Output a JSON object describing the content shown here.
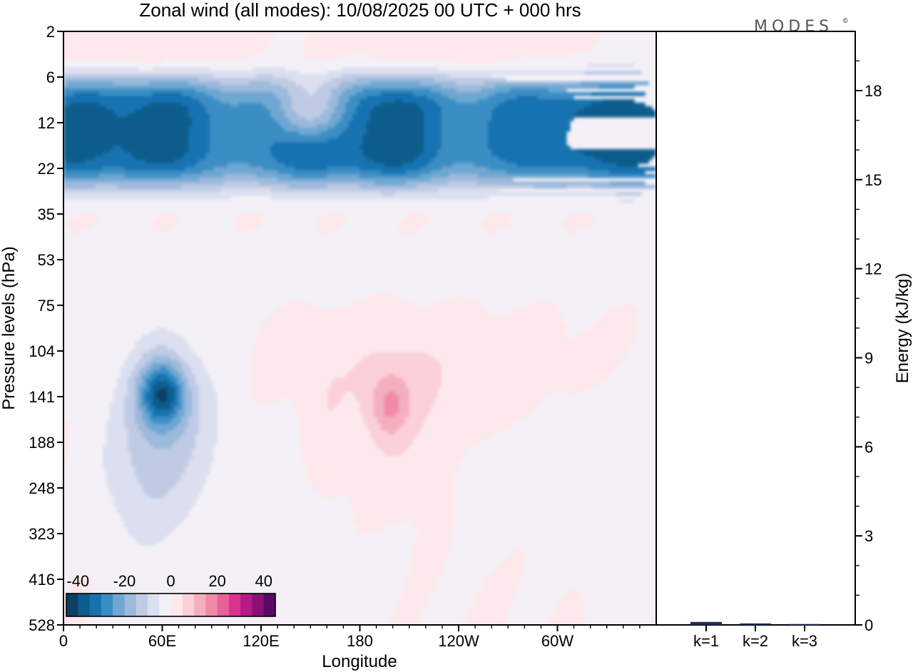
{
  "chart_data": {
    "type": "heatmap",
    "title": "Zonal wind (all modes):  10/08/2025  00 UTC  + 000 hrs",
    "brand": "MODES",
    "brand_mark": "©",
    "xlabel": "Longitude",
    "ylabel": "Pressure levels (hPa)",
    "x_ticks": [
      "0",
      "60E",
      "120E",
      "180",
      "120W",
      "60W"
    ],
    "y_ticks": [
      "2",
      "6",
      "12",
      "22",
      "35",
      "53",
      "75",
      "104",
      "141",
      "188",
      "248",
      "323",
      "416",
      "528"
    ],
    "colorbar": {
      "tick_labels": [
        "-40",
        "-20",
        "0",
        "20",
        "40"
      ],
      "min": -45,
      "max": 45,
      "step": 5,
      "colors": [
        "#0b3f63",
        "#0d5d8c",
        "#1772b0",
        "#3b8ec4",
        "#6ea7d2",
        "#9bbadc",
        "#bfcbe4",
        "#dcdfef",
        "#f3f1f7",
        "#fde9ec",
        "#fbd0d8",
        "#f5aebd",
        "#ef8aa7",
        "#e8609a",
        "#d7348f",
        "#b51b83",
        "#8c0f76",
        "#5a0a66"
      ]
    },
    "energy_panel": {
      "ylabel": "Energy (kJ/kg)",
      "ylim": [
        0,
        20
      ],
      "y_ticks": [
        "0",
        "3",
        "6",
        "9",
        "12",
        "15",
        "18"
      ],
      "categories": [
        "k=1",
        "k=2",
        "k=3"
      ],
      "values": [
        0.1,
        0.05,
        0.03
      ],
      "bar_color": "#1e2a5a"
    }
  }
}
